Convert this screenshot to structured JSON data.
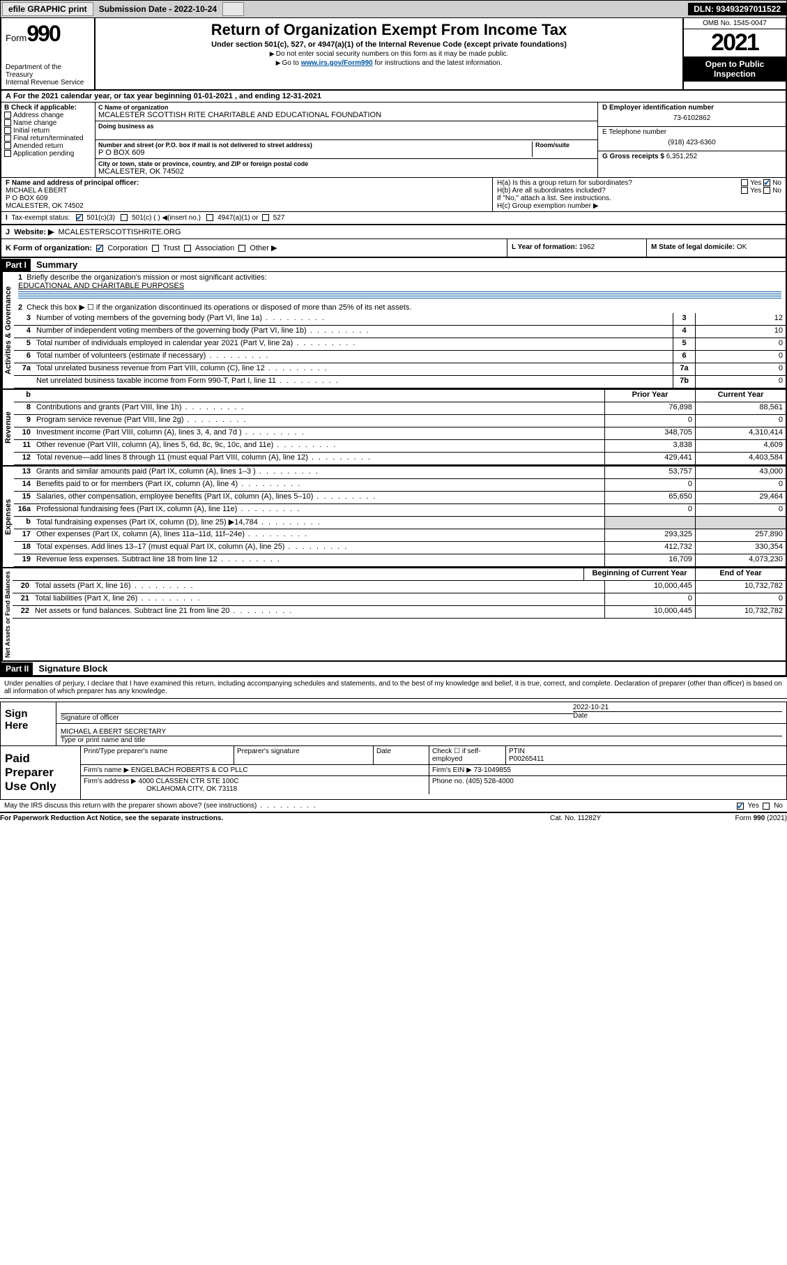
{
  "toolbar": {
    "efile": "efile GRAPHIC print",
    "subdate_lbl": "Submission Date - 2022-10-24",
    "dln": "DLN: 93493297011522"
  },
  "header": {
    "form_word": "Form",
    "form_num": "990",
    "dept": "Department of the Treasury",
    "irs": "Internal Revenue Service",
    "title": "Return of Organization Exempt From Income Tax",
    "sub": "Under section 501(c), 527, or 4947(a)(1) of the Internal Revenue Code (except private foundations)",
    "note1": "Do not enter social security numbers on this form as it may be made public.",
    "note2_pre": "Go to ",
    "note2_link": "www.irs.gov/Form990",
    "note2_post": " for instructions and the latest information.",
    "omb": "OMB No. 1545-0047",
    "year": "2021",
    "inspect": "Open to Public Inspection"
  },
  "A": {
    "text": "For the 2021 calendar year, or tax year beginning 01-01-2021   , and ending 12-31-2021"
  },
  "B": {
    "head": "B Check if applicable:",
    "opts": [
      "Address change",
      "Name change",
      "Initial return",
      "Final return/terminated",
      "Amended return",
      "Application pending"
    ]
  },
  "C": {
    "name_lbl": "C Name of organization",
    "name": "MCALESTER SCOTTISH RITE CHARITABLE AND EDUCATIONAL FOUNDATION",
    "dba_lbl": "Doing business as",
    "street_lbl": "Number and street (or P.O. box if mail is not delivered to street address)",
    "room_lbl": "Room/suite",
    "street": "P O BOX 609",
    "city_lbl": "City or town, state or province, country, and ZIP or foreign postal code",
    "city": "MCALESTER, OK  74502"
  },
  "D": {
    "lbl": "D Employer identification number",
    "val": "73-6102862"
  },
  "E": {
    "lbl": "E Telephone number",
    "val": "(918) 423-6360"
  },
  "G": {
    "lbl": "G Gross receipts $",
    "val": "6,351,252"
  },
  "F": {
    "lbl": "F  Name and address of principal officer:",
    "name": "MICHAEL A EBERT",
    "street": "P O BOX 609",
    "city": "MCALESTER, OK  74502"
  },
  "H": {
    "a": "H(a)  Is this a group return for subordinates?",
    "b": "H(b)  Are all subordinates included?",
    "b2": "If \"No,\" attach a list. See instructions.",
    "c": "H(c)  Group exemption number ▶",
    "yes": "Yes",
    "no": "No"
  },
  "I": {
    "lbl": "Tax-exempt status:",
    "o1": "501(c)(3)",
    "o2": "501(c) (  ) ◀(insert no.)",
    "o3": "4947(a)(1) or",
    "o4": "527"
  },
  "J": {
    "lbl": "Website: ▶",
    "val": "MCALESTERSCOTTISHRITE.ORG"
  },
  "K": {
    "lbl": "K Form of organization:",
    "o1": "Corporation",
    "o2": "Trust",
    "o3": "Association",
    "o4": "Other ▶"
  },
  "L": {
    "lbl": "L Year of formation:",
    "val": "1962"
  },
  "M": {
    "lbl": "M State of legal domicile:",
    "val": "OK"
  },
  "part1": {
    "num": "Part I",
    "title": "Summary"
  },
  "summary": {
    "l1": "Briefly describe the organization's mission or most significant activities:",
    "mission": "EDUCATIONAL AND CHARITABLE PURPOSES",
    "l2": "Check this box ▶ ☐  if the organization discontinued its operations or disposed of more than 25% of its net assets.",
    "rows": [
      {
        "n": "3",
        "t": "Number of voting members of the governing body (Part VI, line 1a)",
        "k": "3",
        "v": "12"
      },
      {
        "n": "4",
        "t": "Number of independent voting members of the governing body (Part VI, line 1b)",
        "k": "4",
        "v": "10"
      },
      {
        "n": "5",
        "t": "Total number of individuals employed in calendar year 2021 (Part V, line 2a)",
        "k": "5",
        "v": "0"
      },
      {
        "n": "6",
        "t": "Total number of volunteers (estimate if necessary)",
        "k": "6",
        "v": "0"
      },
      {
        "n": "7a",
        "t": "Total unrelated business revenue from Part VIII, column (C), line 12",
        "k": "7a",
        "v": "0"
      },
      {
        "n": "",
        "t": "Net unrelated business taxable income from Form 990-T, Part I, line 11",
        "k": "7b",
        "v": "0"
      }
    ],
    "h_prior": "Prior Year",
    "h_curr": "Current Year",
    "rev": [
      {
        "n": "8",
        "t": "Contributions and grants (Part VIII, line 1h)",
        "p": "76,898",
        "c": "88,561"
      },
      {
        "n": "9",
        "t": "Program service revenue (Part VIII, line 2g)",
        "p": "0",
        "c": "0"
      },
      {
        "n": "10",
        "t": "Investment income (Part VIII, column (A), lines 3, 4, and 7d )",
        "p": "348,705",
        "c": "4,310,414"
      },
      {
        "n": "11",
        "t": "Other revenue (Part VIII, column (A), lines 5, 6d, 8c, 9c, 10c, and 11e)",
        "p": "3,838",
        "c": "4,609"
      },
      {
        "n": "12",
        "t": "Total revenue—add lines 8 through 11 (must equal Part VIII, column (A), line 12)",
        "p": "429,441",
        "c": "4,403,584"
      }
    ],
    "exp": [
      {
        "n": "13",
        "t": "Grants and similar amounts paid (Part IX, column (A), lines 1–3 )",
        "p": "53,757",
        "c": "43,000"
      },
      {
        "n": "14",
        "t": "Benefits paid to or for members (Part IX, column (A), line 4)",
        "p": "0",
        "c": "0"
      },
      {
        "n": "15",
        "t": "Salaries, other compensation, employee benefits (Part IX, column (A), lines 5–10)",
        "p": "65,650",
        "c": "29,464"
      },
      {
        "n": "16a",
        "t": "Professional fundraising fees (Part IX, column (A), line 11e)",
        "p": "0",
        "c": "0"
      },
      {
        "n": "b",
        "t": "Total fundraising expenses (Part IX, column (D), line 25) ▶14,784",
        "p": "grey",
        "c": "grey"
      },
      {
        "n": "17",
        "t": "Other expenses (Part IX, column (A), lines 11a–11d, 11f–24e)",
        "p": "293,325",
        "c": "257,890"
      },
      {
        "n": "18",
        "t": "Total expenses. Add lines 13–17 (must equal Part IX, column (A), line 25)",
        "p": "412,732",
        "c": "330,354"
      },
      {
        "n": "19",
        "t": "Revenue less expenses. Subtract line 18 from line 12",
        "p": "16,709",
        "c": "4,073,230"
      }
    ],
    "h_beg": "Beginning of Current Year",
    "h_end": "End of Year",
    "net": [
      {
        "n": "20",
        "t": "Total assets (Part X, line 16)",
        "p": "10,000,445",
        "c": "10,732,782"
      },
      {
        "n": "21",
        "t": "Total liabilities (Part X, line 26)",
        "p": "0",
        "c": "0"
      },
      {
        "n": "22",
        "t": "Net assets or fund balances. Subtract line 21 from line 20",
        "p": "10,000,445",
        "c": "10,732,782"
      }
    ]
  },
  "tabs": {
    "ag": "Activities & Governance",
    "rev": "Revenue",
    "exp": "Expenses",
    "net": "Net Assets or Fund Balances"
  },
  "part2": {
    "num": "Part II",
    "title": "Signature Block"
  },
  "penalty": "Under penalties of perjury, I declare that I have examined this return, including accompanying schedules and statements, and to the best of my knowledge and belief, it is true, correct, and complete. Declaration of preparer (other than officer) is based on all information of which preparer has any knowledge.",
  "sign": {
    "here": "Sign Here",
    "sig_lbl": "Signature of officer",
    "date_lbl": "Date",
    "date": "2022-10-21",
    "name": "MICHAEL A EBERT  SECRETARY",
    "name_lbl": "Type or print name and title"
  },
  "prep": {
    "title": "Paid Preparer Use Only",
    "h1": "Print/Type preparer's name",
    "h2": "Preparer's signature",
    "h3": "Date",
    "h4": "Check ☐ if self-employed",
    "h5": "PTIN",
    "ptin": "P00265411",
    "firm_lbl": "Firm's name    ▶",
    "firm": "ENGELBACH ROBERTS & CO PLLC",
    "ein_lbl": "Firm's EIN ▶",
    "ein": "73-1049855",
    "addr_lbl": "Firm's address ▶",
    "addr1": "4000 CLASSEN CTR STE 100C",
    "addr2": "OKLAHOMA CITY, OK  73118",
    "phone_lbl": "Phone no.",
    "phone": "(405) 528-4000"
  },
  "discuss": {
    "q": "May the IRS discuss this return with the preparer shown above? (see instructions)",
    "yes": "Yes",
    "no": "No"
  },
  "footer": {
    "pra": "For Paperwork Reduction Act Notice, see the separate instructions.",
    "cat": "Cat. No. 11282Y",
    "form": "Form 990 (2021)"
  }
}
